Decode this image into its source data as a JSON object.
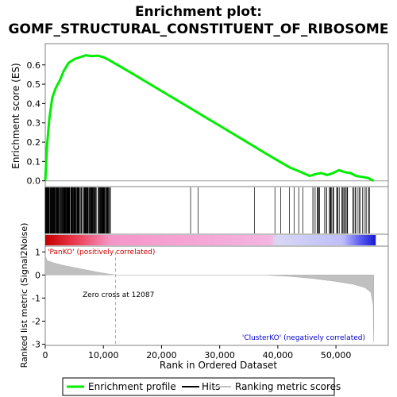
{
  "chart_data": {
    "type": "line",
    "title_line1": "Enrichment plot:",
    "title_line2": "GOMF_STRUCTURAL_CONSTITUENT_OF_RIBOSOME",
    "xlabel": "Rank in Ordered Dataset",
    "ylabel_top": "Enrichment score (ES)",
    "ylabel_bottom": "Ranked list metric (Signal2Noise)",
    "x_ticks": [
      "0",
      "10,000",
      "20,000",
      "30,000",
      "40,000",
      "50,000"
    ],
    "x_tick_values": [
      0,
      10000,
      20000,
      30000,
      40000,
      50000
    ],
    "xlim": [
      0,
      59000
    ],
    "es_ylim": [
      -0.03,
      0.71
    ],
    "es_ticks": [
      "0.0",
      "0.1",
      "0.2",
      "0.3",
      "0.4",
      "0.5",
      "0.6"
    ],
    "es_tick_values": [
      0.0,
      0.1,
      0.2,
      0.3,
      0.4,
      0.5,
      0.6
    ],
    "metric_ylim": [
      -3.05,
      1.25
    ],
    "metric_ticks": [
      "1",
      "0",
      "-1",
      "-2",
      "-3"
    ],
    "metric_tick_values": [
      1,
      0,
      -1,
      -2,
      -3
    ],
    "es_series": {
      "name": "Enrichment profile",
      "color": "#00ee00",
      "x": [
        0,
        300,
        700,
        1200,
        1800,
        2500,
        3200,
        4000,
        5000,
        6000,
        7000,
        8000,
        9000,
        10000,
        11000,
        15000,
        20000,
        25000,
        30000,
        35000,
        38000,
        40000,
        42000,
        44000,
        45500,
        46500,
        47500,
        48500,
        49500,
        50500,
        51500,
        52500,
        53500,
        54500,
        55500,
        56500
      ],
      "y": [
        0.0,
        0.18,
        0.32,
        0.43,
        0.48,
        0.52,
        0.57,
        0.61,
        0.63,
        0.64,
        0.65,
        0.645,
        0.648,
        0.64,
        0.625,
        0.555,
        0.465,
        0.375,
        0.285,
        0.195,
        0.14,
        0.105,
        0.07,
        0.045,
        0.025,
        0.035,
        0.04,
        0.03,
        0.04,
        0.055,
        0.045,
        0.04,
        0.025,
        0.02,
        0.015,
        0.0
      ]
    },
    "hits_group_1": {
      "from": 0,
      "to": 11300
    },
    "hits_group_1_count": 260,
    "hits_isolated": [
      25000,
      26300,
      36000,
      39500,
      40500,
      42000,
      42800,
      43600,
      44300
    ],
    "hits_group_2": {
      "from": 45500,
      "to": 56000
    },
    "hits_group_2_count": 55,
    "zero_cross_rank": 12087,
    "zero_cross_label": "Zero cross at 12087",
    "pos_label": "'PanKO' (positively correlated)",
    "neg_label": "'ClusterKO' (negatively correlated)",
    "metric_series": {
      "x": [
        0,
        300,
        1500,
        3000,
        5000,
        7000,
        9000,
        11000,
        12087,
        38000,
        42000,
        46000,
        50000,
        53000,
        55000,
        56000,
        56400,
        56500
      ],
      "y": [
        0.85,
        0.62,
        0.52,
        0.42,
        0.32,
        0.22,
        0.12,
        0.04,
        0.0,
        0.0,
        -0.06,
        -0.15,
        -0.28,
        -0.4,
        -0.55,
        -0.75,
        -1.3,
        -2.9
      ]
    },
    "legend": {
      "items": [
        {
          "label": "Enrichment profile",
          "color": "#00ee00"
        },
        {
          "label": "Hits",
          "color": "#000000"
        },
        {
          "label": "Ranking metric scores",
          "color": "#c0c0c0"
        }
      ]
    }
  }
}
